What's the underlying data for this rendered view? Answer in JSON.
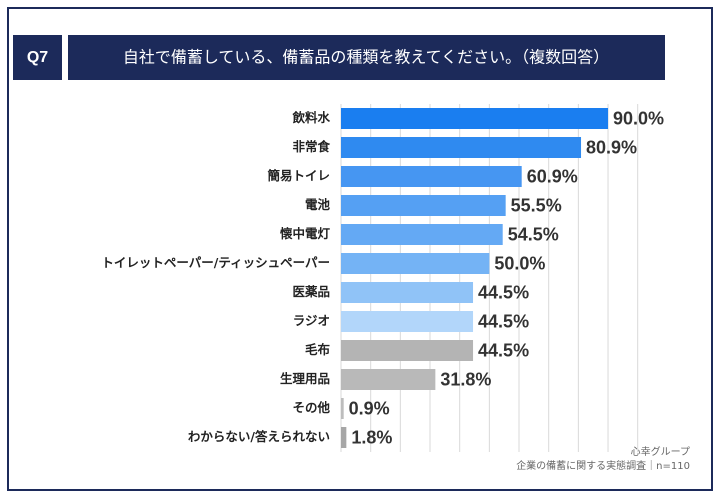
{
  "chart_data": {
    "type": "bar",
    "orientation": "horizontal",
    "badge": "Q7",
    "title": "自社で備蓄している、備蓄品の種類を教えてください。（複数回答）",
    "categories": [
      "飲料水",
      "非常食",
      "簡易トイレ",
      "電池",
      "懐中電灯",
      "トイレットペーパー/ティッシュペーパー",
      "医薬品",
      "ラジオ",
      "毛布",
      "生理用品",
      "その他",
      "わからない/答えられない"
    ],
    "values": [
      90.0,
      80.9,
      60.9,
      55.5,
      54.5,
      50.0,
      44.5,
      44.5,
      44.5,
      31.8,
      0.9,
      1.8
    ],
    "value_labels": [
      "90.0%",
      "80.9%",
      "60.9%",
      "55.5%",
      "54.5%",
      "50.0%",
      "44.5%",
      "44.5%",
      "44.5%",
      "31.8%",
      "0.9%",
      "1.8%"
    ],
    "colors": [
      "#1a7ef0",
      "#2f8af0",
      "#4696f2",
      "#55a0f3",
      "#64a9f4",
      "#74b3f5",
      "#90c3f7",
      "#b2d6fa",
      "#b4b4b4",
      "#b9b9b9",
      "#bdbdbd",
      "#a6a6a6"
    ],
    "xlim": [
      0,
      100
    ],
    "xticks": [
      0,
      10,
      20,
      30,
      40,
      50,
      60,
      70,
      80,
      90,
      100
    ],
    "grid": true,
    "source": [
      "心幸グループ",
      "企業の備蓄に関する実態調査｜n=110"
    ]
  }
}
